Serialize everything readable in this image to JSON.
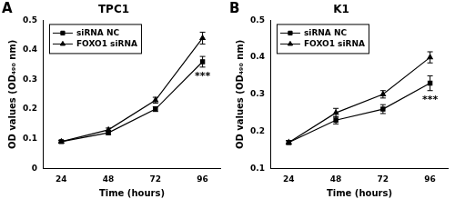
{
  "chart_data": [
    {
      "type": "line",
      "panel": "A",
      "title": "TPC1",
      "x_label": "Time (hours)",
      "y_label": "OD values (OD₄₉₀ nm)",
      "x": [
        24,
        48,
        72,
        96
      ],
      "series": [
        {
          "name": "siRNA NC",
          "color": "#000000",
          "marker": "square",
          "values": [
            0.09,
            0.12,
            0.2,
            0.36
          ],
          "errors": [
            0.004,
            0.006,
            0.008,
            0.018
          ]
        },
        {
          "name": "FOXO1 siRNA",
          "color": "#000000",
          "marker": "triangle",
          "values": [
            0.09,
            0.13,
            0.23,
            0.44
          ],
          "errors": [
            0.004,
            0.006,
            0.01,
            0.02
          ]
        }
      ],
      "xlim": [
        15,
        105
      ],
      "xticks": [
        24,
        48,
        72,
        96
      ],
      "ylim": [
        0,
        0.5
      ],
      "yticks": [
        0,
        0.1,
        0.2,
        0.3,
        0.4,
        0.5
      ],
      "grid": false,
      "legend": "upper left",
      "annotations": [
        {
          "text": "***",
          "x": 96,
          "y": 0.31
        }
      ]
    },
    {
      "type": "line",
      "panel": "B",
      "title": "K1",
      "x_label": "Time (hours)",
      "y_label": "OD values (OD₄₉₀ nm)",
      "x": [
        24,
        48,
        72,
        96
      ],
      "series": [
        {
          "name": "siRNA NC",
          "color": "#000000",
          "marker": "square",
          "values": [
            0.17,
            0.23,
            0.26,
            0.33
          ],
          "errors": [
            0.005,
            0.01,
            0.012,
            0.02
          ]
        },
        {
          "name": "FOXO1 siRNA",
          "color": "#000000",
          "marker": "triangle",
          "values": [
            0.17,
            0.25,
            0.3,
            0.4
          ],
          "errors": [
            0.005,
            0.012,
            0.01,
            0.015
          ]
        }
      ],
      "xlim": [
        15,
        105
      ],
      "xticks": [
        24,
        48,
        72,
        96
      ],
      "ylim": [
        0.1,
        0.5
      ],
      "yticks": [
        0.1,
        0.2,
        0.3,
        0.4,
        0.5
      ],
      "grid": false,
      "legend": "upper left",
      "annotations": [
        {
          "text": "***",
          "x": 96,
          "y": 0.285
        }
      ]
    }
  ]
}
